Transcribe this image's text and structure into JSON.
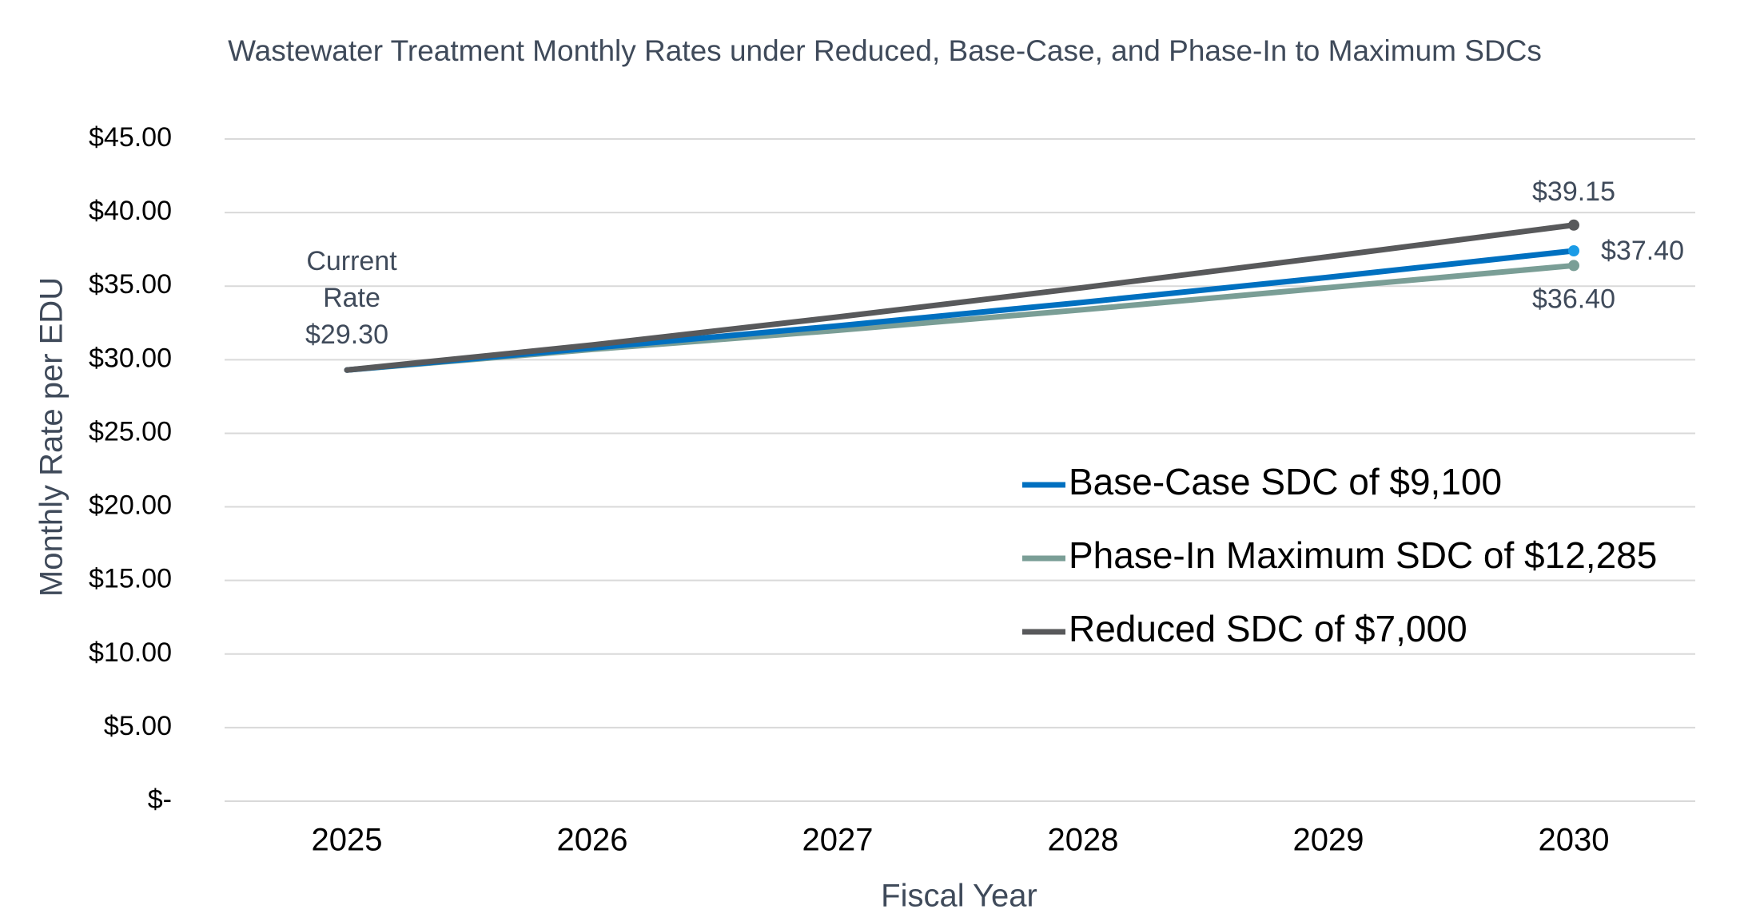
{
  "chart_data": {
    "type": "line",
    "title": "Wastewater Treatment Monthly Rates under Reduced, Base-Case, and Phase-In to Maximum SDCs",
    "x_label": "Fiscal Year",
    "y_label": "Monthly Rate per EDU",
    "categories": [
      "2025",
      "2026",
      "2027",
      "2028",
      "2029",
      "2030"
    ],
    "series": [
      {
        "name": "Base-Case SDC of $9,100",
        "color": "#0070c0",
        "values": [
          29.3,
          30.8,
          32.3,
          33.9,
          35.6,
          37.4
        ],
        "value_labels": [
          null,
          null,
          null,
          null,
          null,
          "$37.40"
        ]
      },
      {
        "name": "Phase-In Maximum SDC of $12,285",
        "color": "#7a9e96",
        "values": [
          29.3,
          30.7,
          32.0,
          33.4,
          34.9,
          36.4
        ],
        "value_labels": [
          null,
          null,
          null,
          null,
          null,
          "$36.40"
        ]
      },
      {
        "name": "Reduced SDC of $7,000",
        "color": "#58595b",
        "values": [
          29.3,
          31.0,
          32.9,
          34.9,
          37.0,
          39.15
        ],
        "value_labels": [
          "$29.30",
          null,
          null,
          null,
          null,
          "$39.15"
        ]
      }
    ],
    "annotation": [
      "Current",
      "Rate"
    ],
    "ylim": [
      0,
      45
    ],
    "yticks": [
      {
        "value": 0,
        "label": "$-"
      },
      {
        "value": 5,
        "label": "$5.00"
      },
      {
        "value": 10,
        "label": "$10.00"
      },
      {
        "value": 15,
        "label": "$15.00"
      },
      {
        "value": 20,
        "label": "$20.00"
      },
      {
        "value": 25,
        "label": "$25.00"
      },
      {
        "value": 30,
        "label": "$30.00"
      },
      {
        "value": 35,
        "label": "$35.00"
      },
      {
        "value": 40,
        "label": "$40.00"
      },
      {
        "value": 45,
        "label": "$45.00"
      }
    ],
    "grid": true,
    "legend": "right"
  }
}
